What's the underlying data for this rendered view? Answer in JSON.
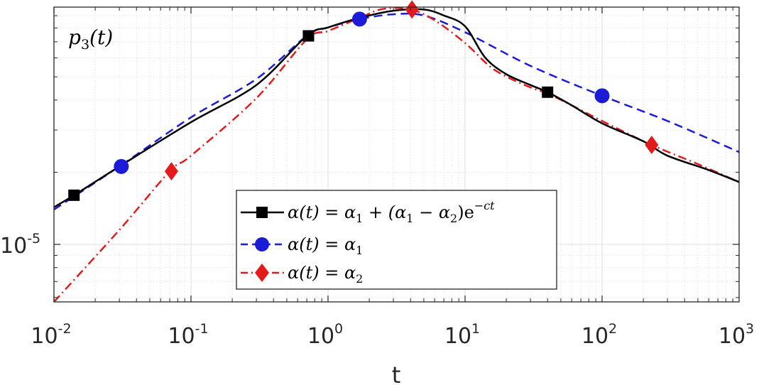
{
  "chart_data": {
    "type": "line",
    "title": "",
    "annotation": "p3(t)",
    "annotation_main": "p",
    "annotation_sub": "3",
    "annotation_arg": "(t)",
    "xlabel": "t",
    "ylabel": "",
    "xscale": "log",
    "yscale": "log",
    "xlim": [
      0.01,
      1000
    ],
    "ylim_exp": [
      -5.24,
      -4.01
    ],
    "x_ticks": [
      {
        "base": "10",
        "exp": "-2"
      },
      {
        "base": "10",
        "exp": "-1"
      },
      {
        "base": "10",
        "exp": "0"
      },
      {
        "base": "10",
        "exp": "1"
      },
      {
        "base": "10",
        "exp": "2"
      },
      {
        "base": "10",
        "exp": "3"
      }
    ],
    "y_ticks": [
      {
        "base": "10",
        "exp": "-5"
      }
    ],
    "grid": true,
    "legend_position": "lower-center",
    "series": [
      {
        "name": "α(t) = α1 + (α1 − α2)e−ct",
        "legend_main": "α(t) = α",
        "legend_sub1": "1",
        "legend_mid": " + (α",
        "legend_sub2": "1",
        "legend_mid2": " − α",
        "legend_sub3": "2",
        "legend_tail": ")e",
        "legend_sup": "−ct",
        "color": "#000000",
        "dash": "solid",
        "marker": "square",
        "x": [
          0.01,
          0.014,
          0.03,
          0.1,
          0.3,
          0.7,
          1.0,
          1.7,
          3.0,
          5.0,
          7.0,
          10.0,
          14.0,
          20.0,
          30.0,
          40.0,
          60.0,
          100.0,
          200.0,
          300.0,
          600.0,
          1000.0
        ],
        "y_exp": [
          -4.845,
          -4.795,
          -4.675,
          -4.49,
          -4.335,
          -4.13,
          -4.095,
          -4.055,
          -4.025,
          -4.02,
          -4.045,
          -4.09,
          -4.22,
          -4.29,
          -4.335,
          -4.365,
          -4.42,
          -4.495,
          -4.57,
          -4.63,
          -4.69,
          -4.74
        ],
        "marker_x": [
          0.014,
          0.72,
          40.0
        ],
        "marker_y_exp": [
          -4.795,
          -4.13,
          -4.365
        ]
      },
      {
        "name": "α(t) = α1",
        "legend_main": "α(t) = α",
        "legend_sub1": "1",
        "color": "#1c1cd6",
        "dash": "dashed",
        "marker": "circle",
        "x": [
          0.01,
          0.03,
          0.1,
          0.3,
          0.7,
          1.0,
          1.7,
          3.0,
          5.0,
          10.0,
          30.0,
          100.0,
          300.0,
          1000.0
        ],
        "y_exp": [
          -4.855,
          -4.675,
          -4.47,
          -4.31,
          -4.13,
          -4.095,
          -4.06,
          -4.04,
          -4.045,
          -4.115,
          -4.255,
          -4.38,
          -4.485,
          -4.615
        ],
        "marker_x": [
          0.031,
          1.7,
          100.0
        ],
        "marker_y_exp": [
          -4.675,
          -4.06,
          -4.38
        ]
      },
      {
        "name": "α(t) = α2",
        "legend_main": "α(t) = α",
        "legend_sub1": "2",
        "color": "#e31a1c",
        "dash": "dashdot",
        "marker": "diamond",
        "x": [
          0.01,
          0.03,
          0.07,
          0.1,
          0.3,
          0.7,
          1.0,
          1.7,
          2.5,
          4.0,
          6.0,
          10.0,
          15.0,
          20.0,
          30.0,
          40.0,
          60.0,
          100.0,
          230.0,
          500.0,
          1000.0
        ],
        "y_exp": [
          -5.24,
          -4.94,
          -4.695,
          -4.63,
          -4.39,
          -4.145,
          -4.11,
          -4.055,
          -4.018,
          -4.02,
          -4.065,
          -4.16,
          -4.255,
          -4.3,
          -4.345,
          -4.37,
          -4.42,
          -4.485,
          -4.585,
          -4.665,
          -4.74
        ],
        "marker_x": [
          0.072,
          4.1,
          230.0
        ],
        "marker_y_exp": [
          -4.695,
          -4.02,
          -4.585
        ]
      }
    ]
  }
}
